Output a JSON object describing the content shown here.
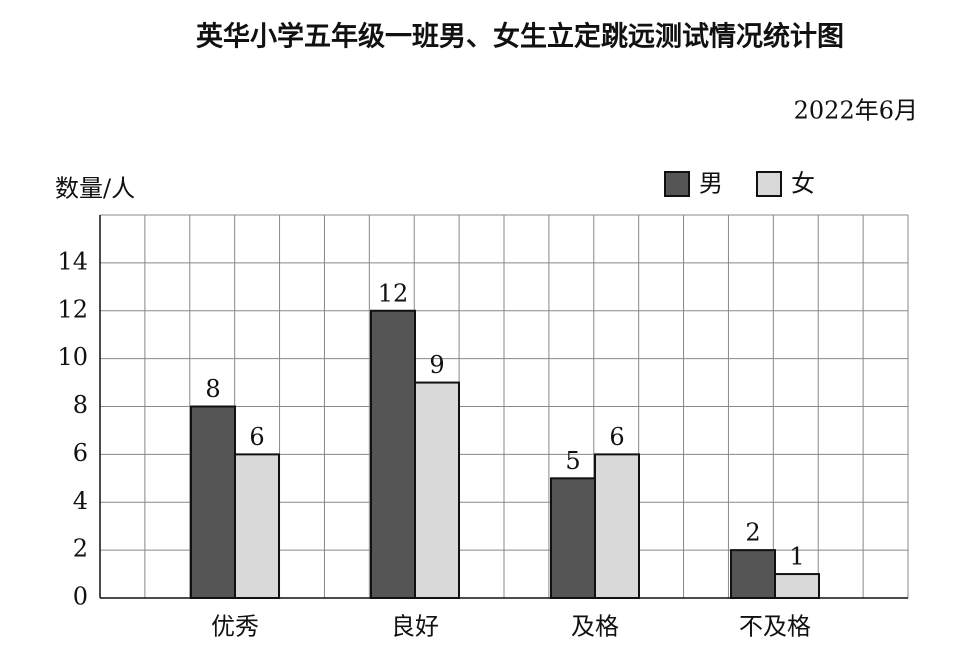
{
  "chart_data": {
    "type": "bar",
    "title": "英华小学五年级一班男、女生立定跳远测试情况统计图",
    "subtitle": "2022年6月",
    "y_label": "数量/人",
    "categories": [
      "优秀",
      "良好",
      "及格",
      "不及格"
    ],
    "series": [
      {
        "name": "男",
        "color": "#555555",
        "values": [
          8,
          12,
          5,
          2
        ]
      },
      {
        "name": "女",
        "color": "#d9d9d9",
        "values": [
          6,
          9,
          6,
          1
        ]
      }
    ],
    "ylim": [
      0,
      16
    ],
    "yticks": [
      0,
      2,
      4,
      6,
      8,
      10,
      12,
      14
    ],
    "grid": true
  }
}
